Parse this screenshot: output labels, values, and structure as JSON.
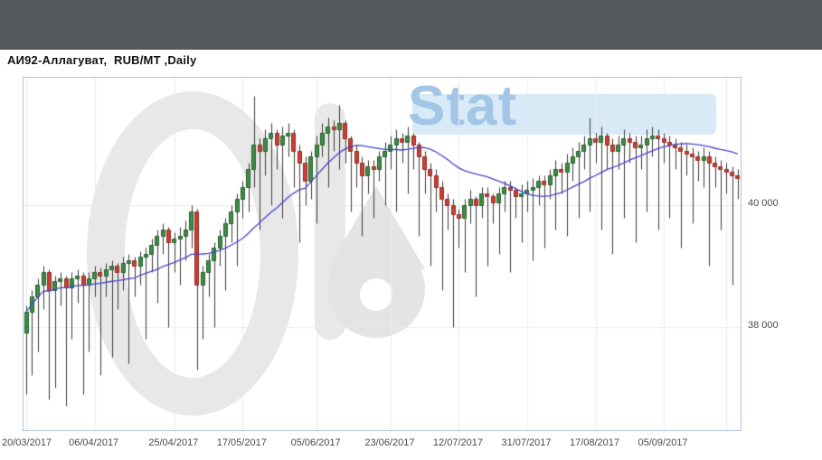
{
  "window": {
    "topbar_color": "#56595c"
  },
  "header": {
    "title": "АИ92-Аллагуват,  RUB/MT ,Daily"
  },
  "watermark": {
    "stat_text": "Stat"
  },
  "chart_data": {
    "type": "candlestick",
    "title": "АИ92-Аллагуват, RUB/MT, Daily",
    "symbol": "АИ92-Аллагуват",
    "unit": "RUB/MT",
    "timeframe": "Daily",
    "ylim": [
      36300,
      42100
    ],
    "y_gridlines": [
      38000,
      40000
    ],
    "y_axis_labels": [
      {
        "text": "40 000",
        "value": 40000
      },
      {
        "text": "38 000",
        "value": 38000
      }
    ],
    "x_ticks": [
      {
        "label": "20/03/2017",
        "index": 0
      },
      {
        "label": "06/04/2017",
        "index": 12
      },
      {
        "label": "25/04/2017",
        "index": 26
      },
      {
        "label": "17/05/2017",
        "index": 38
      },
      {
        "label": "05/06/2017",
        "index": 51
      },
      {
        "label": "23/06/2017",
        "index": 64
      },
      {
        "label": "12/07/2017",
        "index": 76
      },
      {
        "label": "31/07/2017",
        "index": 88
      },
      {
        "label": "17/08/2017",
        "index": 100
      },
      {
        "label": "05/09/2017",
        "index": 112
      },
      {
        "label": "",
        "index": 123
      }
    ],
    "overlay": {
      "name": "moving-average",
      "type": "sma",
      "period": 20,
      "color": "#4444cc"
    },
    "colors": {
      "up_fill": "#3f8c47",
      "up_border": "#215c29",
      "down_fill": "#cd3f35",
      "down_border": "#8e2a22",
      "wick": "#3a3a3a",
      "grid": "#e7ebef",
      "plot_border": "#aec6dc"
    },
    "candles_ohlc": [
      [
        37900,
        38350,
        36900,
        38250
      ],
      [
        38250,
        38600,
        37200,
        38500
      ],
      [
        38500,
        38800,
        37600,
        38700
      ],
      [
        38700,
        39000,
        38300,
        38900
      ],
      [
        38900,
        38950,
        36800,
        38600
      ],
      [
        38600,
        38850,
        37000,
        38750
      ],
      [
        38750,
        38900,
        38350,
        38800
      ],
      [
        38800,
        38850,
        36700,
        38650
      ],
      [
        38650,
        38900,
        37800,
        38800
      ],
      [
        38800,
        38950,
        38400,
        38850
      ],
      [
        38850,
        38900,
        36900,
        38700
      ],
      [
        38700,
        38900,
        37600,
        38800
      ],
      [
        38800,
        39000,
        38500,
        38900
      ],
      [
        38900,
        38980,
        37200,
        38850
      ],
      [
        38850,
        39050,
        38500,
        38950
      ],
      [
        38950,
        39100,
        37500,
        39000
      ],
      [
        39000,
        39050,
        38300,
        38900
      ],
      [
        38900,
        39150,
        38600,
        39050
      ],
      [
        39050,
        39200,
        37400,
        39100
      ],
      [
        39100,
        39150,
        38500,
        39000
      ],
      [
        39000,
        39250,
        38700,
        39150
      ],
      [
        39150,
        39300,
        37800,
        39200
      ],
      [
        39200,
        39450,
        38900,
        39350
      ],
      [
        39350,
        39600,
        38400,
        39500
      ],
      [
        39500,
        39700,
        39200,
        39600
      ],
      [
        39600,
        39650,
        38000,
        39400
      ],
      [
        39400,
        39550,
        38900,
        39450
      ],
      [
        39450,
        39650,
        38700,
        39500
      ],
      [
        39500,
        39750,
        39100,
        39600
      ],
      [
        39600,
        40000,
        39300,
        39900
      ],
      [
        39900,
        39950,
        37300,
        38700
      ],
      [
        38700,
        39000,
        37800,
        38900
      ],
      [
        38900,
        39200,
        38500,
        39100
      ],
      [
        39100,
        39400,
        38000,
        39300
      ],
      [
        39300,
        39600,
        39000,
        39500
      ],
      [
        39500,
        39800,
        38600,
        39700
      ],
      [
        39700,
        40000,
        39400,
        39900
      ],
      [
        39900,
        40200,
        39000,
        40100
      ],
      [
        40100,
        40400,
        39800,
        40300
      ],
      [
        40300,
        40700,
        39900,
        40600
      ],
      [
        40600,
        41800,
        40300,
        41000
      ],
      [
        41000,
        41100,
        39600,
        40900
      ],
      [
        40900,
        41250,
        40500,
        41100
      ],
      [
        41100,
        41350,
        40000,
        41200
      ],
      [
        41200,
        41250,
        40600,
        41000
      ],
      [
        41000,
        41300,
        39800,
        41150
      ],
      [
        41150,
        41350,
        40800,
        41200
      ],
      [
        41200,
        41250,
        40300,
        40900
      ],
      [
        40900,
        41000,
        39400,
        40700
      ],
      [
        40700,
        40800,
        40000,
        40400
      ],
      [
        40400,
        40900,
        40100,
        40800
      ],
      [
        40800,
        41150,
        39700,
        41000
      ],
      [
        41000,
        41350,
        40800,
        41200
      ],
      [
        41200,
        41450,
        40300,
        41300
      ],
      [
        41300,
        41400,
        40900,
        41250
      ],
      [
        41250,
        41650,
        40600,
        41350
      ],
      [
        41350,
        41400,
        40700,
        41100
      ],
      [
        41100,
        41150,
        39900,
        40900
      ],
      [
        40900,
        41000,
        40300,
        40700
      ],
      [
        40700,
        40800,
        39500,
        40500
      ],
      [
        40500,
        40750,
        40200,
        40650
      ],
      [
        40650,
        40750,
        39800,
        40600
      ],
      [
        40600,
        40900,
        40400,
        40800
      ],
      [
        40800,
        41050,
        40000,
        40900
      ],
      [
        40900,
        41150,
        40600,
        41000
      ],
      [
        41000,
        41250,
        39900,
        41100
      ],
      [
        41100,
        41200,
        40700,
        41050
      ],
      [
        41050,
        41300,
        40200,
        41150
      ],
      [
        41150,
        41200,
        40600,
        41000
      ],
      [
        41000,
        41050,
        39500,
        40800
      ],
      [
        40800,
        40900,
        40200,
        40600
      ],
      [
        40600,
        40700,
        39000,
        40500
      ],
      [
        40500,
        40600,
        39900,
        40300
      ],
      [
        40300,
        40400,
        38600,
        40100
      ],
      [
        40100,
        40200,
        39600,
        40000
      ],
      [
        40000,
        40100,
        38000,
        39850
      ],
      [
        39850,
        39950,
        39300,
        39800
      ],
      [
        39800,
        40100,
        38900,
        40000
      ],
      [
        40000,
        40250,
        39700,
        40100
      ],
      [
        40100,
        40150,
        38500,
        40000
      ],
      [
        40000,
        40300,
        39800,
        40200
      ],
      [
        40200,
        40300,
        39000,
        40150
      ],
      [
        40150,
        40200,
        39700,
        40050
      ],
      [
        40050,
        40300,
        39200,
        40200
      ],
      [
        40200,
        40400,
        39900,
        40300
      ],
      [
        40300,
        40400,
        38900,
        40250
      ],
      [
        40250,
        40300,
        39800,
        40150
      ],
      [
        40150,
        40350,
        39400,
        40200
      ],
      [
        40200,
        40400,
        39900,
        40250
      ],
      [
        40250,
        40450,
        39100,
        40300
      ],
      [
        40300,
        40500,
        40000,
        40400
      ],
      [
        40400,
        40500,
        39300,
        40350
      ],
      [
        40350,
        40600,
        40100,
        40500
      ],
      [
        40500,
        40750,
        39600,
        40600
      ],
      [
        40600,
        40700,
        40200,
        40550
      ],
      [
        40550,
        40850,
        39500,
        40700
      ],
      [
        40700,
        40950,
        40400,
        40800
      ],
      [
        40800,
        41050,
        39800,
        40900
      ],
      [
        40900,
        41150,
        40600,
        41000
      ],
      [
        41000,
        41450,
        39900,
        41100
      ],
      [
        41100,
        41200,
        40700,
        41050
      ],
      [
        41050,
        41300,
        39600,
        41150
      ],
      [
        41150,
        41200,
        40600,
        41000
      ],
      [
        41000,
        41100,
        39200,
        40900
      ],
      [
        40900,
        41150,
        40600,
        41000
      ],
      [
        41000,
        41250,
        39800,
        41100
      ],
      [
        41100,
        41200,
        40700,
        41050
      ],
      [
        41050,
        41150,
        39400,
        40950
      ],
      [
        40950,
        41150,
        40600,
        41000
      ],
      [
        41000,
        41250,
        39900,
        41100
      ],
      [
        41100,
        41300,
        40800,
        41150
      ],
      [
        41150,
        41250,
        39600,
        41100
      ],
      [
        41100,
        41200,
        40700,
        41050
      ],
      [
        41050,
        41150,
        39800,
        41000
      ],
      [
        41000,
        41100,
        40600,
        40950
      ],
      [
        40950,
        41050,
        39300,
        40900
      ],
      [
        40900,
        41000,
        40500,
        40850
      ],
      [
        40850,
        40950,
        39700,
        40800
      ],
      [
        40800,
        40900,
        40400,
        40750
      ],
      [
        40750,
        40950,
        40300,
        40800
      ],
      [
        40800,
        40900,
        39000,
        40700
      ],
      [
        40700,
        40800,
        40300,
        40650
      ],
      [
        40650,
        40750,
        39600,
        40600
      ],
      [
        40600,
        40700,
        40200,
        40550
      ],
      [
        40550,
        40650,
        38700,
        40500
      ],
      [
        40500,
        40600,
        40100,
        40450
      ]
    ]
  }
}
